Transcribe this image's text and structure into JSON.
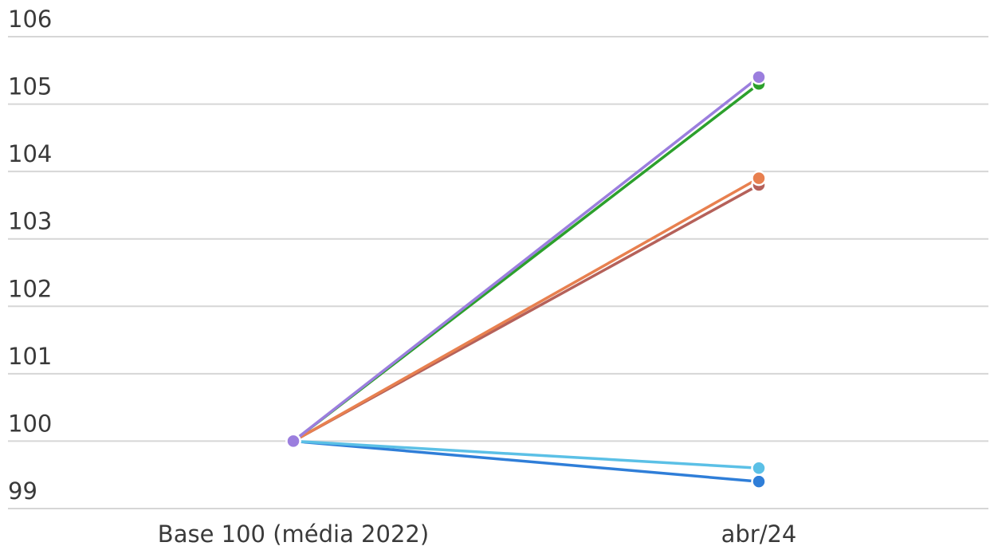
{
  "chart_data": {
    "type": "line",
    "categories": [
      "Base 100 (média 2022)",
      "abr/24"
    ],
    "ylim": [
      99,
      106
    ],
    "y_ticks": [
      99,
      100,
      101,
      102,
      103,
      104,
      105,
      106
    ],
    "grid": true,
    "legend": "none",
    "series": [
      {
        "color": "#2f7ed8",
        "values": [
          100,
          99.4
        ]
      },
      {
        "color": "#5bc0e6",
        "values": [
          100,
          99.6
        ]
      },
      {
        "color": "#b5615a",
        "values": [
          100,
          103.8
        ]
      },
      {
        "color": "#2ca02c",
        "values": [
          100,
          105.3
        ]
      },
      {
        "color": "#e8804f",
        "values": [
          100,
          103.9
        ]
      },
      {
        "color": "#9b7ede",
        "values": [
          100,
          105.4
        ]
      }
    ]
  }
}
